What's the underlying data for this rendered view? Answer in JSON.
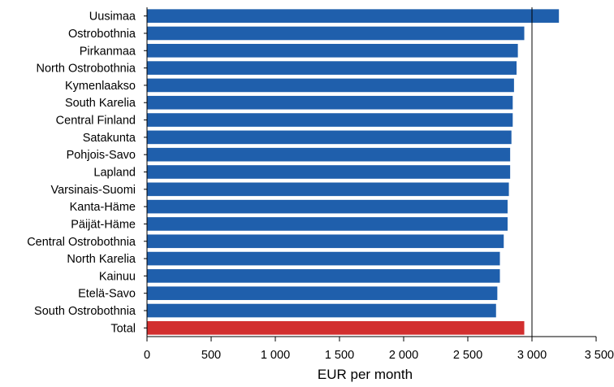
{
  "chart_data": {
    "type": "bar",
    "orientation": "horizontal",
    "title": "",
    "xlabel": "EUR per month",
    "ylabel": "",
    "xlim": [
      0,
      3500
    ],
    "x_ticks": [
      0,
      500,
      1000,
      1500,
      2000,
      2500,
      3000,
      3500
    ],
    "x_tick_labels": [
      "0",
      "500",
      "1 000",
      "1 500",
      "2 000",
      "2 500",
      "3 000",
      "3 500"
    ],
    "grid": "none",
    "reference_line": 3000,
    "categories": [
      "Uusimaa",
      "Ostrobothnia",
      "Pirkanmaa",
      "North Ostrobothnia",
      "Kymenlaakso",
      "South Karelia",
      "Central Finland",
      "Satakunta",
      "Pohjois-Savo",
      "Lapland",
      "Varsinais-Suomi",
      "Kanta-Häme",
      "Päijät-Häme",
      "Central Ostrobothnia",
      "North Karelia",
      "Kainuu",
      "Etelä-Savo",
      "South Ostrobothnia",
      "Total"
    ],
    "values": [
      3210,
      2940,
      2890,
      2880,
      2860,
      2850,
      2850,
      2840,
      2830,
      2830,
      2820,
      2810,
      2810,
      2780,
      2750,
      2750,
      2730,
      2720,
      2940
    ],
    "colors": {
      "bar": "#1f5fac",
      "total": "#d22f2f",
      "axis": "#000000"
    }
  }
}
